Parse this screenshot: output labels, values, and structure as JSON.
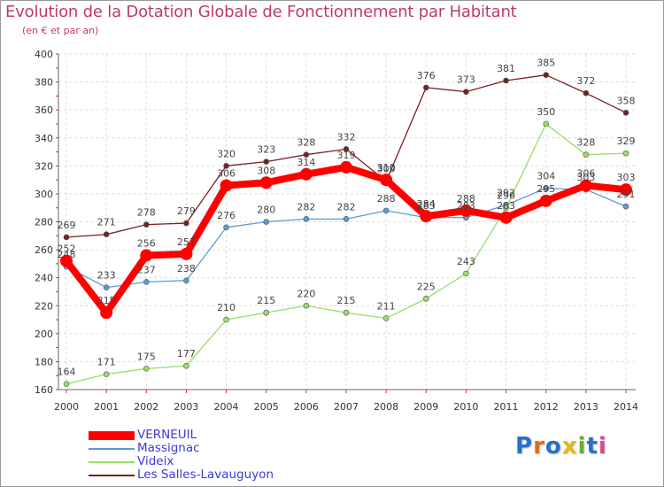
{
  "header": {
    "title": "Evolution de la Dotation Globale de Fonctionnement par Habitant",
    "subtitle": "(en € et par an)"
  },
  "logo": {
    "text": "Proxiti",
    "letters": [
      {
        "ch": "P",
        "color": "#2a6fc9"
      },
      {
        "ch": "r",
        "color": "#e06a1b"
      },
      {
        "ch": "o",
        "color": "#2a6fc9"
      },
      {
        "ch": "x",
        "color": "#e4b81d"
      },
      {
        "ch": "i",
        "color": "#6aae2e"
      },
      {
        "ch": "t",
        "color": "#2a6fc9"
      },
      {
        "ch": "i",
        "color": "#d94a8c"
      }
    ]
  },
  "chart_data": {
    "type": "line",
    "title": "Evolution de la Dotation Globale de Fonctionnement par Habitant",
    "subtitle": "(en € et par an)",
    "x": [
      "2000",
      "2001",
      "2002",
      "2003",
      "2004",
      "2005",
      "2006",
      "2007",
      "2008",
      "2009",
      "2010",
      "2011",
      "2012",
      "2013",
      "2014"
    ],
    "ylim": [
      160,
      400
    ],
    "yticks": [
      160,
      180,
      200,
      220,
      240,
      260,
      280,
      300,
      320,
      340,
      360,
      380,
      400
    ],
    "grid": true,
    "legend_position": "bottom-left",
    "series": [
      {
        "name": "VERNEUIL",
        "color": "#ff0000",
        "values": [
          252,
          215,
          256,
          257,
          306,
          308,
          314,
          319,
          310,
          284,
          288,
          283,
          295,
          306,
          303
        ],
        "emphasis": true
      },
      {
        "name": "Massignac",
        "color": "#5b9bd5",
        "values": [
          248,
          233,
          237,
          238,
          276,
          280,
          282,
          282,
          288,
          283,
          283,
          292,
          304,
          303,
          291
        ]
      },
      {
        "name": "Videix",
        "color": "#99dd66",
        "values": [
          164,
          171,
          175,
          177,
          210,
          215,
          220,
          215,
          211,
          225,
          243,
          290,
          350,
          328,
          329
        ]
      },
      {
        "name": "Les Salles-Lavauguyon",
        "color": "#7a1f1f",
        "values": [
          269,
          271,
          278,
          279,
          320,
          323,
          328,
          332,
          309,
          376,
          373,
          381,
          385,
          372,
          358
        ]
      }
    ]
  }
}
